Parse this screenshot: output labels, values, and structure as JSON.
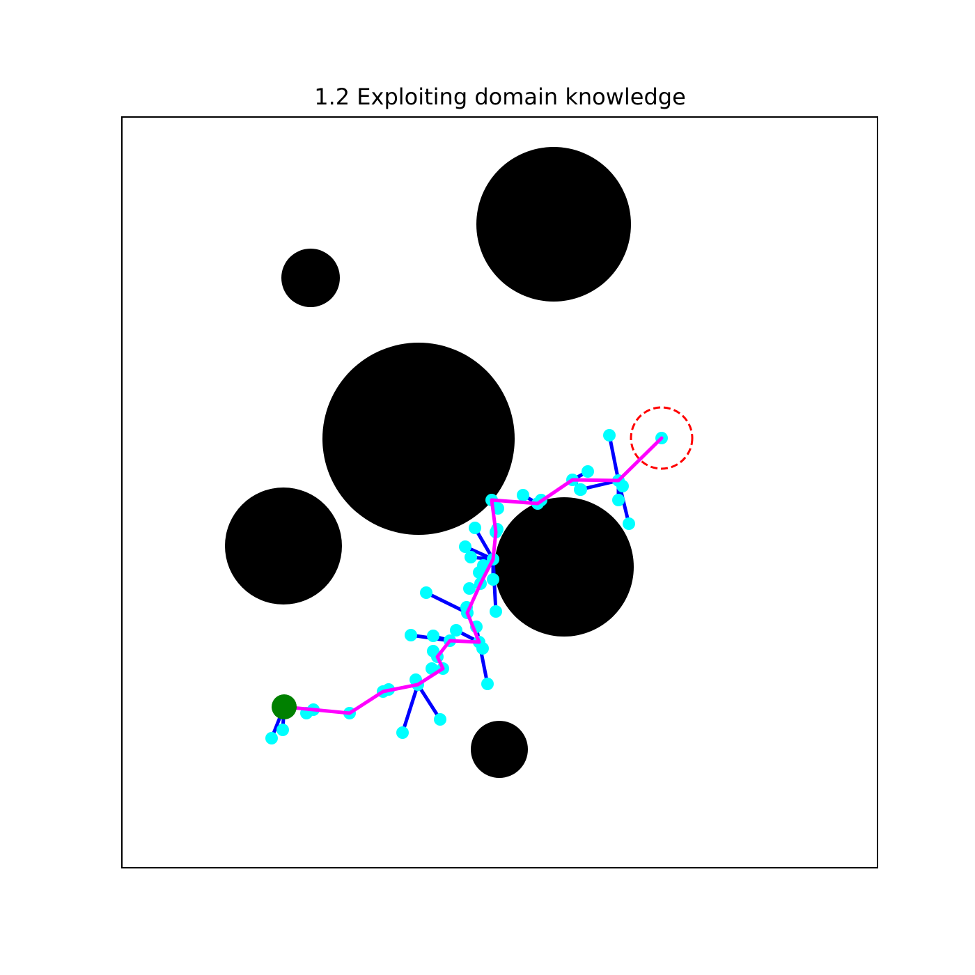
{
  "figure": {
    "title": "1.2 Exploiting domain knowledge"
  },
  "colors": {
    "background": "#ffffff",
    "axes_frame": "#000000",
    "obstacle": "#000000",
    "tree_edge": "#0000ff",
    "tree_node": "#00ffff",
    "path": "#ff00ff",
    "start": "#008000",
    "goal": "#ff0000"
  },
  "legend": "none",
  "grid": false,
  "ticks": "none"
}
